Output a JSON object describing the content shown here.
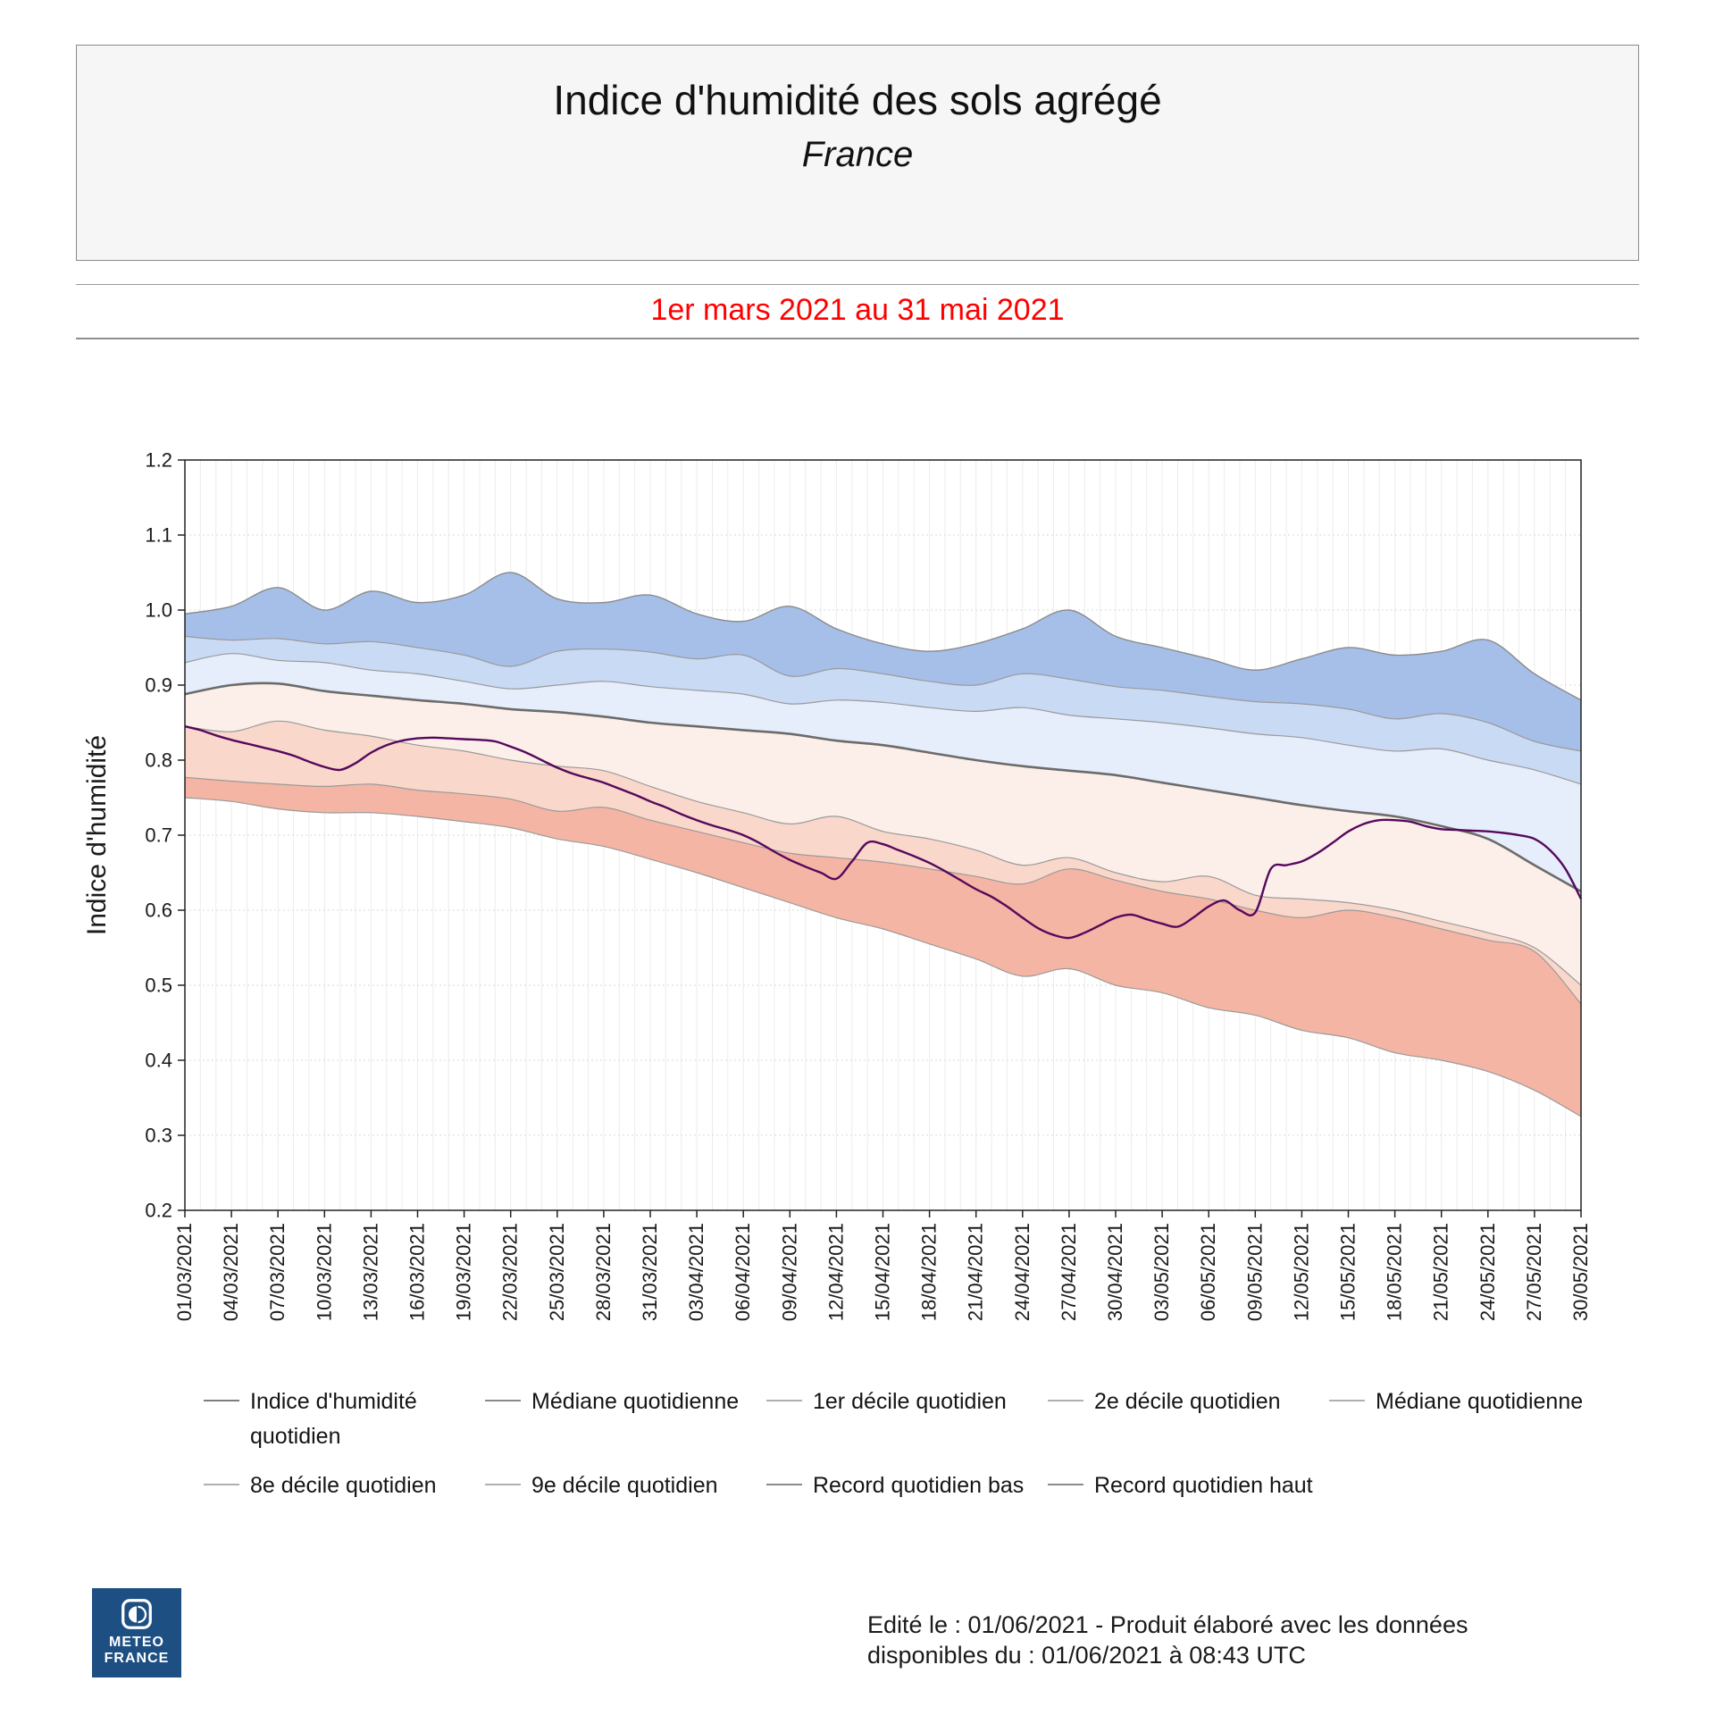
{
  "header": {
    "title": "Indice d'humidité des sols agrégé",
    "subtitle": "France"
  },
  "period_label": "1er mars 2021 au 31 mai 2021",
  "period_color": "#ff0000",
  "chart_data": {
    "type": "area",
    "title": "Indice d'humidité des sols agrégé - France",
    "xlabel": "",
    "ylabel": "Indice d'humidité",
    "ylim": [
      0.2,
      1.2
    ],
    "ytick_step": 0.1,
    "x_domain_days": 90,
    "x_tick_every_days": 3,
    "grid": {
      "v_color": "#ececec",
      "h_color": "#d9d9d9"
    },
    "x_tick_labels": [
      "01/03/2021",
      "04/03/2021",
      "07/03/2021",
      "10/03/2021",
      "13/03/2021",
      "16/03/2021",
      "19/03/2021",
      "22/03/2021",
      "25/03/2021",
      "28/03/2021",
      "31/03/2021",
      "03/04/2021",
      "06/04/2021",
      "09/04/2021",
      "12/04/2021",
      "15/04/2021",
      "18/04/2021",
      "21/04/2021",
      "24/04/2021",
      "27/04/2021",
      "30/04/2021",
      "03/05/2021",
      "06/05/2021",
      "09/05/2021",
      "12/05/2021",
      "15/05/2021",
      "18/05/2021",
      "21/05/2021",
      "24/05/2021",
      "27/05/2021",
      "30/05/2021"
    ],
    "series": [
      {
        "id": "record_haut",
        "name": "Record quotidien haut",
        "color": "#8a8a8a",
        "width": 1.4,
        "x_step": 3,
        "values": [
          0.995,
          1.005,
          1.03,
          1.0,
          1.025,
          1.01,
          1.02,
          1.05,
          1.015,
          1.01,
          1.02,
          0.995,
          0.985,
          1.005,
          0.975,
          0.955,
          0.945,
          0.955,
          0.975,
          1.0,
          0.965,
          0.95,
          0.935,
          0.92,
          0.935,
          0.95,
          0.94,
          0.945,
          0.96,
          0.915,
          0.88
        ]
      },
      {
        "id": "decile9",
        "name": "9e décile quotidien",
        "color": "#9a9a9a",
        "width": 1.2,
        "x_step": 3,
        "values": [
          0.965,
          0.96,
          0.962,
          0.955,
          0.958,
          0.95,
          0.94,
          0.925,
          0.945,
          0.948,
          0.944,
          0.935,
          0.94,
          0.912,
          0.922,
          0.915,
          0.905,
          0.9,
          0.915,
          0.908,
          0.898,
          0.893,
          0.885,
          0.878,
          0.875,
          0.868,
          0.855,
          0.862,
          0.85,
          0.825,
          0.812
        ]
      },
      {
        "id": "decile8",
        "name": "8e décile quotidien",
        "color": "#9a9a9a",
        "width": 1.2,
        "x_step": 3,
        "values": [
          0.93,
          0.942,
          0.933,
          0.93,
          0.92,
          0.915,
          0.905,
          0.895,
          0.9,
          0.905,
          0.898,
          0.893,
          0.888,
          0.875,
          0.88,
          0.877,
          0.87,
          0.865,
          0.87,
          0.86,
          0.855,
          0.85,
          0.843,
          0.835,
          0.83,
          0.82,
          0.812,
          0.815,
          0.8,
          0.787,
          0.768
        ]
      },
      {
        "id": "mediane",
        "name": "Médiane quotidienne",
        "color": "#6b6b6b",
        "width": 2.6,
        "x_step": 3,
        "values": [
          0.888,
          0.9,
          0.902,
          0.892,
          0.886,
          0.88,
          0.875,
          0.868,
          0.864,
          0.858,
          0.85,
          0.845,
          0.84,
          0.835,
          0.826,
          0.82,
          0.81,
          0.8,
          0.792,
          0.786,
          0.78,
          0.77,
          0.76,
          0.75,
          0.74,
          0.732,
          0.725,
          0.712,
          0.695,
          0.66,
          0.625
        ]
      },
      {
        "id": "decile2",
        "name": "2e décile quotidien",
        "color": "#9a9a9a",
        "width": 1.2,
        "x_step": 3,
        "values": [
          0.845,
          0.838,
          0.852,
          0.84,
          0.832,
          0.82,
          0.812,
          0.8,
          0.792,
          0.786,
          0.765,
          0.745,
          0.73,
          0.715,
          0.725,
          0.705,
          0.695,
          0.68,
          0.66,
          0.67,
          0.65,
          0.638,
          0.645,
          0.62,
          0.615,
          0.61,
          0.6,
          0.585,
          0.57,
          0.55,
          0.5
        ]
      },
      {
        "id": "decile1",
        "name": "1er décile quotidien",
        "color": "#9a9a9a",
        "width": 1.2,
        "x_step": 3,
        "values": [
          0.777,
          0.772,
          0.768,
          0.765,
          0.768,
          0.76,
          0.755,
          0.748,
          0.732,
          0.737,
          0.72,
          0.705,
          0.69,
          0.676,
          0.67,
          0.664,
          0.655,
          0.645,
          0.635,
          0.655,
          0.64,
          0.625,
          0.615,
          0.6,
          0.59,
          0.6,
          0.59,
          0.575,
          0.56,
          0.545,
          0.475
        ]
      },
      {
        "id": "record_bas",
        "name": "Record quotidien bas",
        "color": "#9a9a9a",
        "width": 1.2,
        "x_step": 3,
        "values": [
          0.75,
          0.745,
          0.735,
          0.73,
          0.73,
          0.725,
          0.718,
          0.71,
          0.695,
          0.685,
          0.668,
          0.65,
          0.63,
          0.61,
          0.59,
          0.575,
          0.555,
          0.535,
          0.512,
          0.522,
          0.5,
          0.49,
          0.47,
          0.46,
          0.44,
          0.43,
          0.41,
          0.4,
          0.385,
          0.36,
          0.325
        ]
      },
      {
        "id": "indice",
        "name": "Indice d'humidité quotidien",
        "color": "#55095c",
        "width": 2.4,
        "x_step": 1,
        "values": [
          0.845,
          0.84,
          0.833,
          0.827,
          0.822,
          0.817,
          0.812,
          0.806,
          0.798,
          0.791,
          0.787,
          0.796,
          0.81,
          0.82,
          0.826,
          0.829,
          0.83,
          0.829,
          0.828,
          0.827,
          0.825,
          0.818,
          0.81,
          0.8,
          0.79,
          0.782,
          0.776,
          0.77,
          0.762,
          0.754,
          0.745,
          0.737,
          0.728,
          0.72,
          0.713,
          0.707,
          0.7,
          0.69,
          0.678,
          0.667,
          0.658,
          0.65,
          0.642,
          0.665,
          0.69,
          0.688,
          0.68,
          0.672,
          0.663,
          0.652,
          0.64,
          0.628,
          0.618,
          0.605,
          0.59,
          0.576,
          0.567,
          0.563,
          0.57,
          0.58,
          0.59,
          0.594,
          0.588,
          0.582,
          0.578,
          0.59,
          0.605,
          0.613,
          0.6,
          0.597,
          0.655,
          0.66,
          0.665,
          0.676,
          0.69,
          0.705,
          0.715,
          0.72,
          0.72,
          0.718,
          0.712,
          0.708,
          0.707,
          0.706,
          0.705,
          0.703,
          0.7,
          0.695,
          0.68,
          0.655,
          0.615
        ]
      }
    ],
    "bands": [
      {
        "upper": "record_haut",
        "lower": "decile9",
        "color": "#a6bfe9"
      },
      {
        "upper": "decile9",
        "lower": "decile8",
        "color": "#c9daf4"
      },
      {
        "upper": "decile8",
        "lower": "mediane",
        "color": "#e6eefb"
      },
      {
        "upper": "mediane",
        "lower": "decile2",
        "color": "#fcefe9"
      },
      {
        "upper": "decile2",
        "lower": "decile1",
        "color": "#f9d8cb"
      },
      {
        "upper": "decile1",
        "lower": "record_bas",
        "color": "#f5b5a4"
      }
    ],
    "legend_position": "bottom"
  },
  "legend": {
    "items": [
      {
        "label": "Indice d'humidité quotidien",
        "color": "#7d7d7d"
      },
      {
        "label": "Médiane quotidienne",
        "color": "#8a8a8a"
      },
      {
        "label": "1er décile quotidien",
        "color": "#b0b0b0"
      },
      {
        "label": "2e décile quotidien",
        "color": "#b0b0b0"
      },
      {
        "label": "Médiane quotidienne",
        "color": "#b0b0b0"
      },
      {
        "label": "8e décile quotidien",
        "color": "#b0b0b0"
      },
      {
        "label": "9e décile quotidien",
        "color": "#b0b0b0"
      },
      {
        "label": "Record quotidien bas",
        "color": "#8a8a8a"
      },
      {
        "label": "Record quotidien haut",
        "color": "#8a8a8a"
      }
    ]
  },
  "footer": {
    "logo_line1": "METEO",
    "logo_line2": "FRANCE",
    "logo_bg": "#1e4f82",
    "credit_line1": "Edité le : 01/06/2021 - Produit élaboré avec les données",
    "credit_line2": "disponibles du : 01/06/2021 à 08:43 UTC"
  }
}
